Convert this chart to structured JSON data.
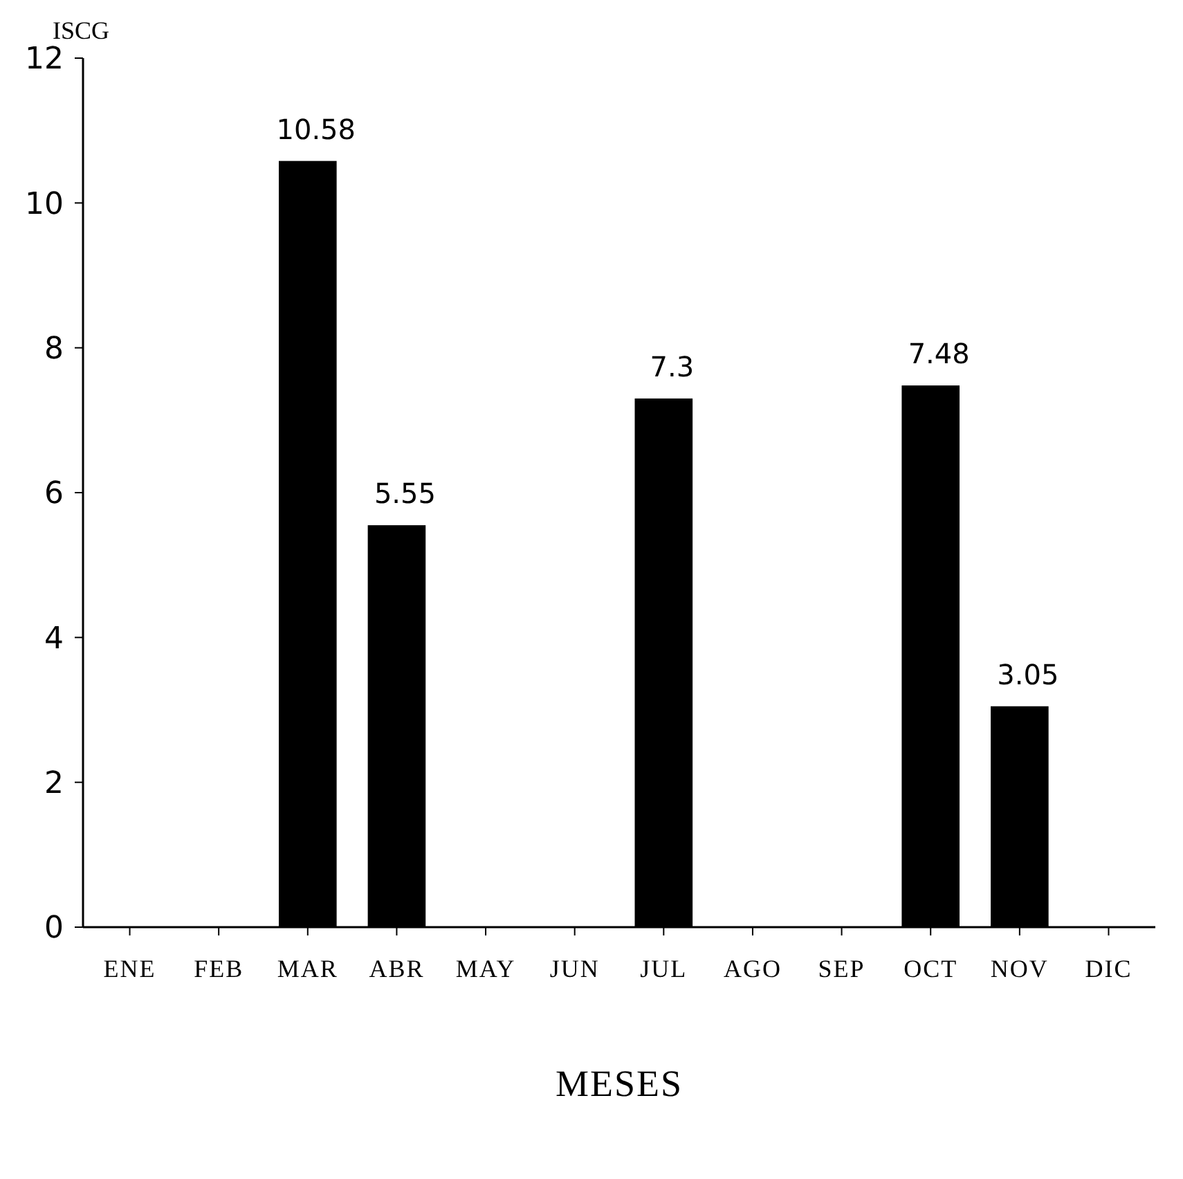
{
  "chart_data": {
    "type": "bar",
    "ylabel": "ISCG",
    "xlabel": "MESES",
    "categories": [
      "ENE",
      "FEB",
      "MAR",
      "ABR",
      "MAY",
      "JUN",
      "JUL",
      "AGO",
      "SEP",
      "OCT",
      "NOV",
      "DIC"
    ],
    "values": [
      null,
      null,
      10.58,
      5.55,
      null,
      null,
      7.3,
      null,
      null,
      7.48,
      3.05,
      null
    ],
    "color": "#000000",
    "ylim": [
      0,
      12
    ],
    "yticks": [
      0,
      2,
      4,
      6,
      8,
      10,
      12
    ],
    "data_labels": true,
    "grid": false
  }
}
